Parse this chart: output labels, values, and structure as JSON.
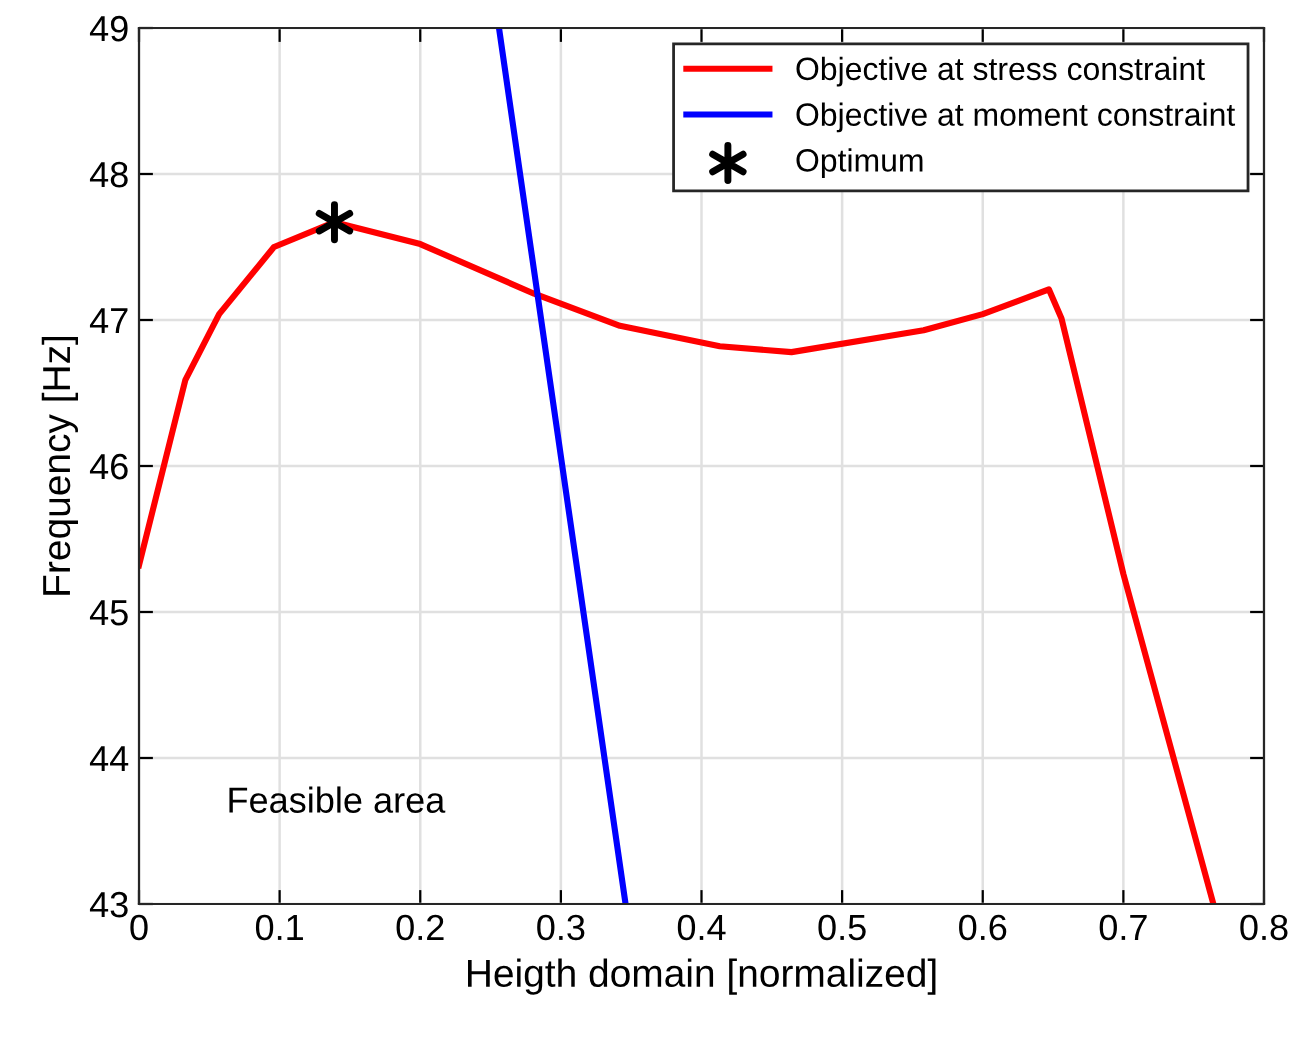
{
  "chart_data": {
    "type": "line",
    "xlabel": "Heigth domain [normalized]",
    "ylabel": "Frequency [Hz]",
    "xlim": [
      0,
      0.8
    ],
    "ylim": [
      43,
      49
    ],
    "xticks": [
      0,
      0.1,
      0.2,
      0.3,
      0.4,
      0.5,
      0.6,
      0.7,
      0.8
    ],
    "yticks": [
      43,
      44,
      45,
      46,
      47,
      48,
      49
    ],
    "grid": true,
    "legend": "top right",
    "series": [
      {
        "name": "Objective at stress constraint",
        "color": "#ff0000",
        "marker": "none",
        "x": [
          0.0,
          0.033,
          0.057,
          0.096,
          0.139,
          0.2,
          0.281,
          0.342,
          0.413,
          0.464,
          0.558,
          0.6,
          0.647,
          0.656,
          0.7,
          0.764
        ],
        "values": [
          45.32,
          46.59,
          47.04,
          47.5,
          47.67,
          47.52,
          47.18,
          46.96,
          46.82,
          46.78,
          46.93,
          47.04,
          47.21,
          47.01,
          45.26,
          43.0
        ]
      },
      {
        "name": "Objective at moment constraint",
        "color": "#0000ff",
        "marker": "none",
        "x": [
          0.256,
          0.283,
          0.346
        ],
        "values": [
          49.0,
          47.2,
          43.0
        ]
      },
      {
        "name": "Optimum",
        "color": "#000000",
        "type": "scatter",
        "marker": "cross",
        "x": [
          0.139
        ],
        "values": [
          47.67
        ]
      }
    ],
    "annotations": [
      "Feasible area"
    ]
  }
}
